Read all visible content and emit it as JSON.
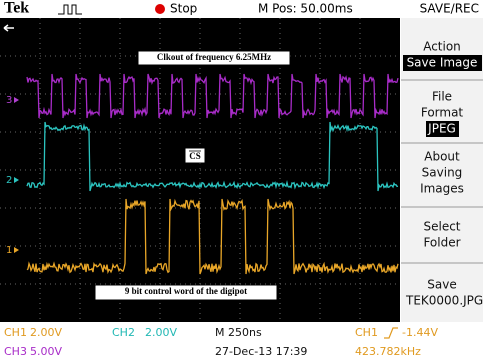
{
  "header": {
    "brand": "Tek",
    "status": "Stop",
    "position": "M Pos: 50.00ms",
    "menu_title": "SAVE/REC"
  },
  "menu": [
    {
      "lines": [
        "Action"
      ],
      "highlight": "Save Image"
    },
    {
      "lines": [
        "File",
        "Format"
      ],
      "highlight": "JPEG"
    },
    {
      "lines": [
        "About",
        "Saving",
        "Images"
      ]
    },
    {
      "lines": [
        "Select",
        "Folder"
      ]
    },
    {
      "lines": [
        "Save",
        "TEK0000.JPG"
      ]
    }
  ],
  "annotations": {
    "clock": "Clkout of frequency 6.25MHz",
    "cs": "CS",
    "data": "9 bit control word of the digipot"
  },
  "channel_markers": [
    "3",
    "2",
    "1"
  ],
  "footer": {
    "ch1": "CH1",
    "ch1_scale": "2.00V",
    "ch2": "CH2",
    "ch2_scale": "2.00V",
    "timebase": "M 250ns",
    "trigger_source": "CH1",
    "trigger_level": "-1.44V",
    "ch3": "CH3",
    "ch3_scale": "5.00V",
    "datetime": "27-Dec-13 17:39",
    "frequency": "423.782kHz"
  }
}
